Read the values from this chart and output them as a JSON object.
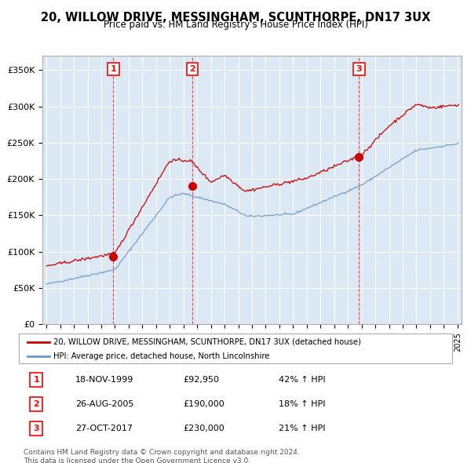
{
  "title": "20, WILLOW DRIVE, MESSINGHAM, SCUNTHORPE, DN17 3UX",
  "subtitle": "Price paid vs. HM Land Registry's House Price Index (HPI)",
  "title_fontsize": 11,
  "subtitle_fontsize": 9,
  "ylabel": "",
  "background_color": "#dce9f5",
  "plot_bg_color": "#dce9f5",
  "sale_points": [
    {
      "date": 1999.88,
      "price": 92950,
      "label": "1"
    },
    {
      "date": 2005.65,
      "price": 190000,
      "label": "2"
    },
    {
      "date": 2017.82,
      "price": 230000,
      "label": "3"
    }
  ],
  "vline_dates": [
    1999.88,
    2005.65,
    2017.82
  ],
  "vline_labels": [
    "1",
    "2",
    "3"
  ],
  "ylim": [
    0,
    370000
  ],
  "yticks": [
    0,
    50000,
    100000,
    150000,
    200000,
    250000,
    300000,
    350000
  ],
  "ytick_labels": [
    "£0",
    "£50K",
    "£100K",
    "£150K",
    "£200K",
    "£250K",
    "£300K",
    "£350K"
  ],
  "legend_entries": [
    "20, WILLOW DRIVE, MESSINGHAM, SCUNTHORPE, DN17 3UX (detached house)",
    "HPI: Average price, detached house, North Lincolnshire"
  ],
  "table_rows": [
    [
      "1",
      "18-NOV-1999",
      "£92,950",
      "42% ↑ HPI"
    ],
    [
      "2",
      "26-AUG-2005",
      "£190,000",
      "18% ↑ HPI"
    ],
    [
      "3",
      "27-OCT-2017",
      "£230,000",
      "21% ↑ HPI"
    ]
  ],
  "footer": "Contains HM Land Registry data © Crown copyright and database right 2024.\nThis data is licensed under the Open Government Licence v3.0.",
  "red_color": "#cc0000",
  "blue_color": "#6699cc"
}
